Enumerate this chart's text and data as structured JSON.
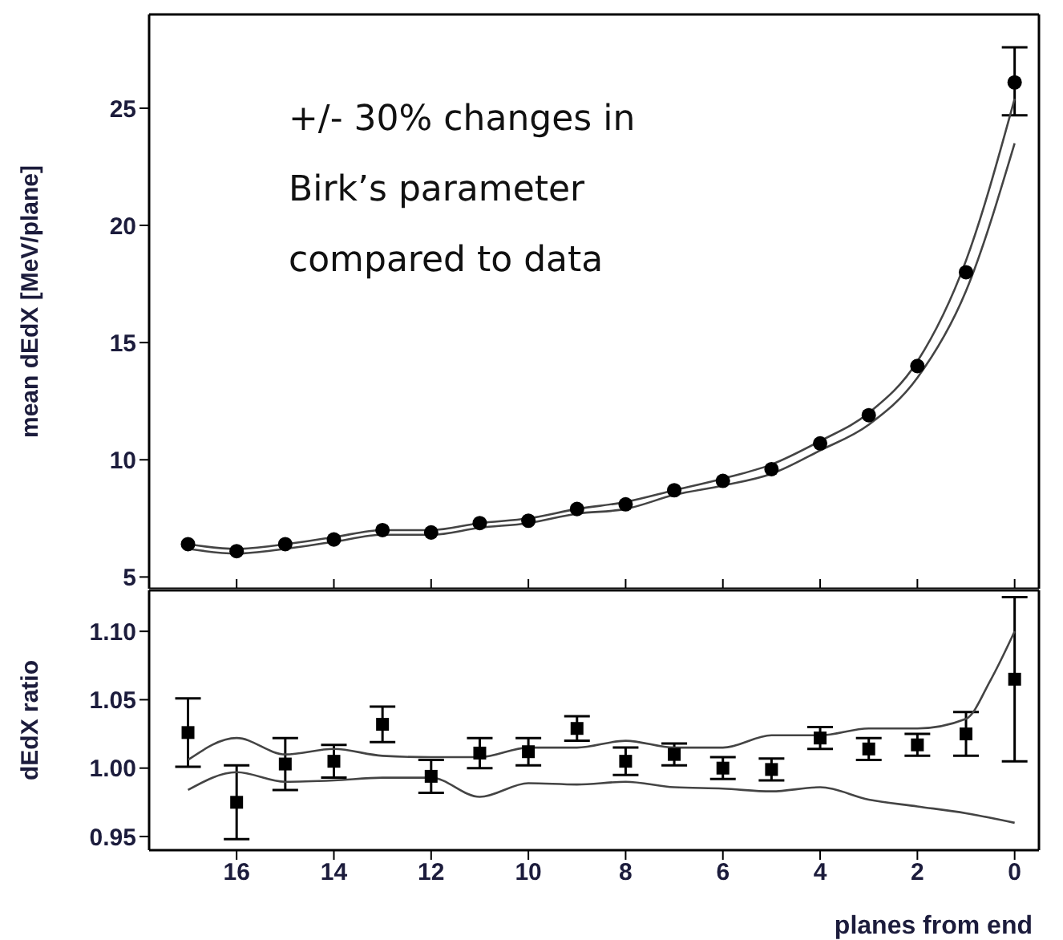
{
  "chart_data": [
    {
      "type": "scatter",
      "ylabel": "mean dEdX [MeV/plane]",
      "xlim": [
        17.8,
        -0.5
      ],
      "xticks": [
        16,
        14,
        12,
        10,
        8,
        6,
        4,
        2,
        0
      ],
      "ylim": [
        4.5,
        29
      ],
      "yticks": [
        5,
        10,
        15,
        20,
        25
      ],
      "tick_labels": "y",
      "annotations": [
        "+/- 30% changes in Birk’s parameter compared to data"
      ],
      "series": [
        {
          "marker": "circle",
          "color": "#000000",
          "x": [
            17,
            16,
            15,
            14,
            13,
            12,
            11,
            10,
            9,
            8,
            7,
            6,
            5,
            4,
            3,
            2,
            1,
            0
          ],
          "values": [
            6.4,
            6.1,
            6.4,
            6.6,
            7.0,
            6.9,
            7.3,
            7.4,
            7.9,
            8.1,
            8.7,
            9.1,
            9.6,
            10.7,
            11.9,
            14.0,
            18.0,
            26.1
          ],
          "errors": [
            null,
            null,
            null,
            null,
            null,
            null,
            null,
            null,
            null,
            null,
            null,
            null,
            null,
            null,
            null,
            null,
            null,
            [
              24.7,
              27.6
            ]
          ]
        },
        {
          "type": "line",
          "color": "#444444",
          "x": [
            17,
            16,
            15,
            14,
            13,
            12,
            11,
            10,
            9,
            8,
            7,
            6,
            5,
            4,
            3,
            2,
            1,
            0
          ],
          "values": [
            6.4,
            6.2,
            6.4,
            6.7,
            7.0,
            7.0,
            7.3,
            7.5,
            7.9,
            8.2,
            8.7,
            9.2,
            9.8,
            10.8,
            12.0,
            14.2,
            18.5,
            25.4
          ]
        },
        {
          "type": "line",
          "color": "#444444",
          "x": [
            17,
            16,
            15,
            14,
            13,
            12,
            11,
            10,
            9,
            8,
            7,
            6,
            5,
            4,
            3,
            2,
            1,
            0
          ],
          "values": [
            6.2,
            6.0,
            6.2,
            6.5,
            6.8,
            6.8,
            7.1,
            7.3,
            7.7,
            7.9,
            8.5,
            8.9,
            9.4,
            10.4,
            11.5,
            13.5,
            17.2,
            23.5
          ]
        }
      ]
    },
    {
      "type": "scatter",
      "ylabel": "dEdX ratio",
      "xlabel": "planes from end",
      "xlim": [
        17.8,
        -0.5
      ],
      "xticks": [
        16,
        14,
        12,
        10,
        8,
        6,
        4,
        2,
        0
      ],
      "ylim": [
        0.94,
        1.13
      ],
      "yticks": [
        {
          "value": 0.95,
          "label": "0.95"
        },
        {
          "value": 1,
          "label": "1.00"
        },
        {
          "value": 1.05,
          "label": "1.05"
        },
        {
          "value": 1.1,
          "label": "1.10"
        }
      ],
      "series": [
        {
          "marker": "square",
          "color": "#000000",
          "x": [
            17,
            16,
            15,
            14,
            13,
            12,
            11,
            10,
            9,
            8,
            7,
            6,
            5,
            4,
            3,
            2,
            1,
            0
          ],
          "values": [
            1.026,
            0.975,
            1.003,
            1.005,
            1.032,
            0.994,
            1.011,
            1.012,
            1.029,
            1.005,
            1.01,
            1.0,
            0.999,
            1.022,
            1.014,
            1.017,
            1.025,
            1.065
          ],
          "errors": [
            0.025,
            0.027,
            0.019,
            0.012,
            0.013,
            0.012,
            0.011,
            0.01,
            0.009,
            0.01,
            0.008,
            0.008,
            0.008,
            0.008,
            0.008,
            0.008,
            0.016,
            0.06
          ]
        },
        {
          "type": "line",
          "color": "#444444",
          "x": [
            17,
            16,
            15,
            14,
            13,
            12,
            11,
            10,
            9,
            8,
            7,
            6,
            5,
            4,
            3,
            2,
            1,
            0.5,
            0
          ],
          "values": [
            1.006,
            1.022,
            1.01,
            1.014,
            1.009,
            1.008,
            1.008,
            1.015,
            1.015,
            1.02,
            1.015,
            1.015,
            1.024,
            1.024,
            1.029,
            1.029,
            1.036,
            1.064,
            1.1
          ]
        },
        {
          "type": "line",
          "color": "#444444",
          "x": [
            17,
            16,
            15,
            14,
            13,
            12,
            11,
            10,
            9,
            8,
            7,
            6,
            5,
            4,
            3,
            2,
            1,
            0
          ],
          "values": [
            0.984,
            0.997,
            0.99,
            0.991,
            0.993,
            0.993,
            0.979,
            0.989,
            0.988,
            0.99,
            0.986,
            0.985,
            0.983,
            0.986,
            0.977,
            0.972,
            0.967,
            0.96
          ]
        }
      ]
    }
  ]
}
